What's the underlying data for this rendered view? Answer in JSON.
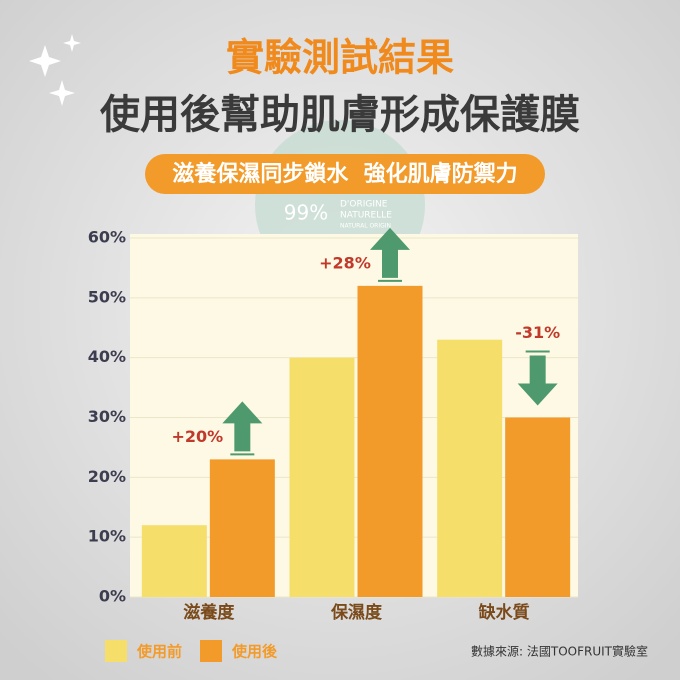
{
  "header": {
    "title": "實驗測試結果",
    "subtitle": "使用後幫助肌膚形成保護膜",
    "tagline": "滋養保濕同步鎖水  強化肌膚防禦力"
  },
  "watermark": {
    "percent": "99%",
    "line1": "D'ORIGINE",
    "line2": "NATURELLE",
    "line3": "NATURAL ORIGIN"
  },
  "chart_data": {
    "type": "bar",
    "categories": [
      "滋養度",
      "保濕度",
      "缺水質"
    ],
    "series": [
      {
        "name": "使用前",
        "color": "#f5de6a",
        "values": [
          12,
          40,
          43
        ]
      },
      {
        "name": "使用後",
        "color": "#f29b2a",
        "values": [
          23,
          52,
          30
        ]
      }
    ],
    "ylim": [
      0,
      60
    ],
    "yticks": [
      {
        "value": 0,
        "label": "0%"
      },
      {
        "value": 10,
        "label": "10%"
      },
      {
        "value": 20,
        "label": "20%"
      },
      {
        "value": 30,
        "label": "30%"
      },
      {
        "value": 40,
        "label": "40%"
      },
      {
        "value": 50,
        "label": "50%"
      },
      {
        "value": 60,
        "label": "60%"
      }
    ],
    "grid": true,
    "annotations": [
      {
        "text": "+20%",
        "arrow": "up"
      },
      {
        "text": "+28%",
        "arrow": "up"
      },
      {
        "text": "-31%",
        "arrow": "down"
      }
    ],
    "arrow_color": "#4e9a6e",
    "source": "數據來源: 法國TOOFRUIT實驗室"
  }
}
